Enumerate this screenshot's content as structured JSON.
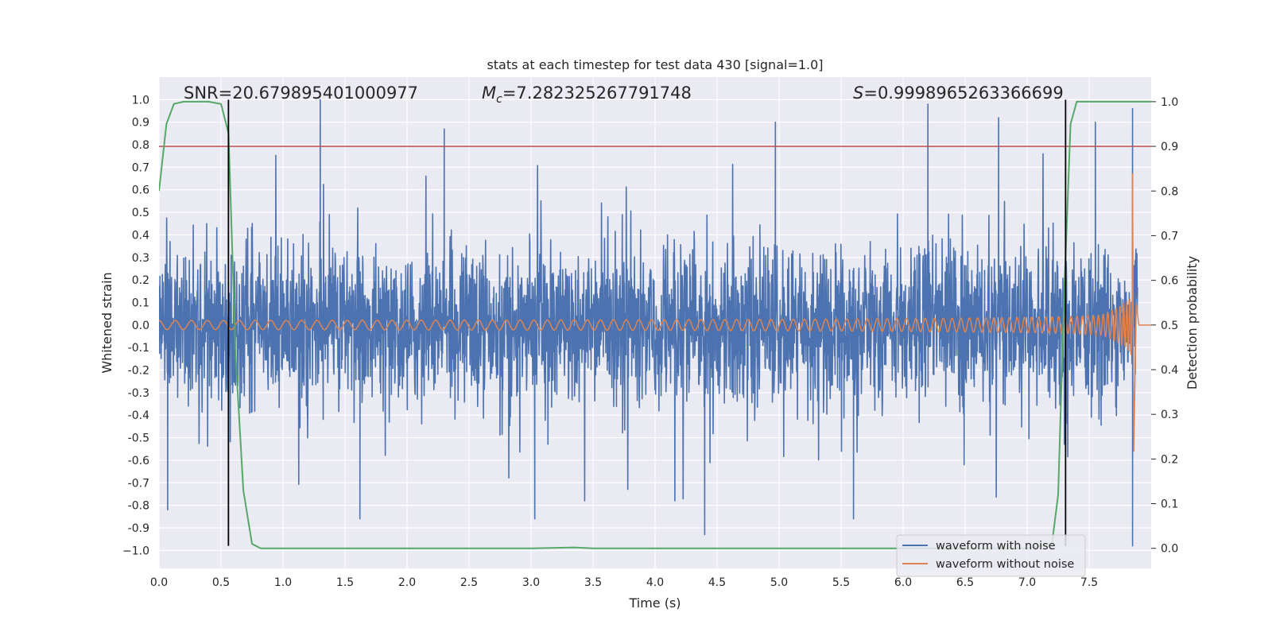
{
  "chart_data": {
    "type": "line",
    "title": "stats at each timestep for test data 430 [signal=1.0]",
    "xlabel": "Time (s)",
    "ylabel": "Whitened strain",
    "y2label": "Detection probability",
    "xlim": [
      0.0,
      8.0
    ],
    "ylim": [
      -1.08,
      1.1
    ],
    "y2lim": [
      -0.045,
      1.055
    ],
    "xticks": [
      "0.0",
      "0.5",
      "1.0",
      "1.5",
      "2.0",
      "2.5",
      "3.0",
      "3.5",
      "4.0",
      "4.5",
      "5.0",
      "5.5",
      "6.0",
      "6.5",
      "7.0",
      "7.5"
    ],
    "yticks": [
      "1.0",
      "0.9",
      "0.8",
      "0.7",
      "0.6",
      "0.5",
      "0.4",
      "0.3",
      "0.2",
      "0.1",
      "0.0",
      "-0.1",
      "-0.2",
      "-0.3",
      "-0.4",
      "-0.5",
      "-0.6",
      "-0.7",
      "-0.8",
      "-0.9",
      "−1.0"
    ],
    "y2ticks": [
      "1.0",
      "0.9",
      "0.8",
      "0.7",
      "0.6",
      "0.5",
      "0.4",
      "0.3",
      "0.2",
      "0.1",
      "0.0"
    ],
    "annotations": {
      "snr": "SNR=20.679895401000977",
      "mc_symbol": "M",
      "mc_sub": "c",
      "mc_value": "=7.282325267791748",
      "s_symbol": "S",
      "s_value": "=0.9998965263366699"
    },
    "legend": {
      "position": "lower-right",
      "entries": [
        "waveform with noise",
        "waveform without noise"
      ]
    },
    "colors": {
      "noise": "#4c72b0",
      "clean": "#dd8452",
      "prob": "#55a868",
      "threshold": "#c44e52",
      "marker": "#000000",
      "background": "#eaeaf2",
      "grid": "#ffffff"
    },
    "series": [
      {
        "name": "waveform with noise",
        "axis": "left",
        "description_values": {
          "duration_s": 7.89,
          "typical_range": [
            -0.45,
            0.45
          ],
          "peaks_high": [
            [
              1.3,
              1.0
            ],
            [
              6.2,
              0.98
            ],
            [
              7.85,
              0.96
            ],
            [
              4.97,
              0.9
            ],
            [
              6.77,
              0.92
            ],
            [
              2.3,
              0.87
            ],
            [
              7.55,
              0.9
            ]
          ],
          "peaks_low": [
            [
              0.07,
              -0.82
            ],
            [
              1.62,
              -0.86
            ],
            [
              3.03,
              -0.86
            ],
            [
              4.4,
              -0.93
            ],
            [
              5.6,
              -0.86
            ],
            [
              7.85,
              -0.98
            ]
          ]
        }
      },
      {
        "name": "waveform without noise",
        "axis": "left",
        "description_values": {
          "chirp_start_amplitude": 0.02,
          "chirp_peak_time": 7.85,
          "chirp_peak_amplitude": 0.67,
          "chirp_min_amplitude": -0.56,
          "end_time": 7.9
        }
      },
      {
        "name": "detection probability",
        "axis": "right",
        "x": [
          0.0,
          0.06,
          0.12,
          0.2,
          0.3,
          0.4,
          0.5,
          0.56,
          0.62,
          0.68,
          0.75,
          0.82,
          1.0,
          2.0,
          3.0,
          3.35,
          3.5,
          4.5,
          6.0,
          7.0,
          7.2,
          7.25,
          7.3,
          7.35,
          7.4,
          8.0
        ],
        "values": [
          0.8,
          0.95,
          0.995,
          1.0,
          1.0,
          1.0,
          0.995,
          0.93,
          0.42,
          0.13,
          0.01,
          0.0,
          0.0,
          0.0,
          0.0,
          0.002,
          0.0,
          0.0,
          0.0,
          0.0,
          0.01,
          0.12,
          0.58,
          0.95,
          1.0,
          1.0
        ]
      },
      {
        "name": "threshold",
        "axis": "right",
        "values": [
          0.9
        ]
      }
    ],
    "markers_x": [
      0.56,
      7.31
    ],
    "markers_range_left_axis": [
      [
        -0.98,
        1.0
      ],
      [
        -0.98,
        1.0
      ]
    ]
  }
}
